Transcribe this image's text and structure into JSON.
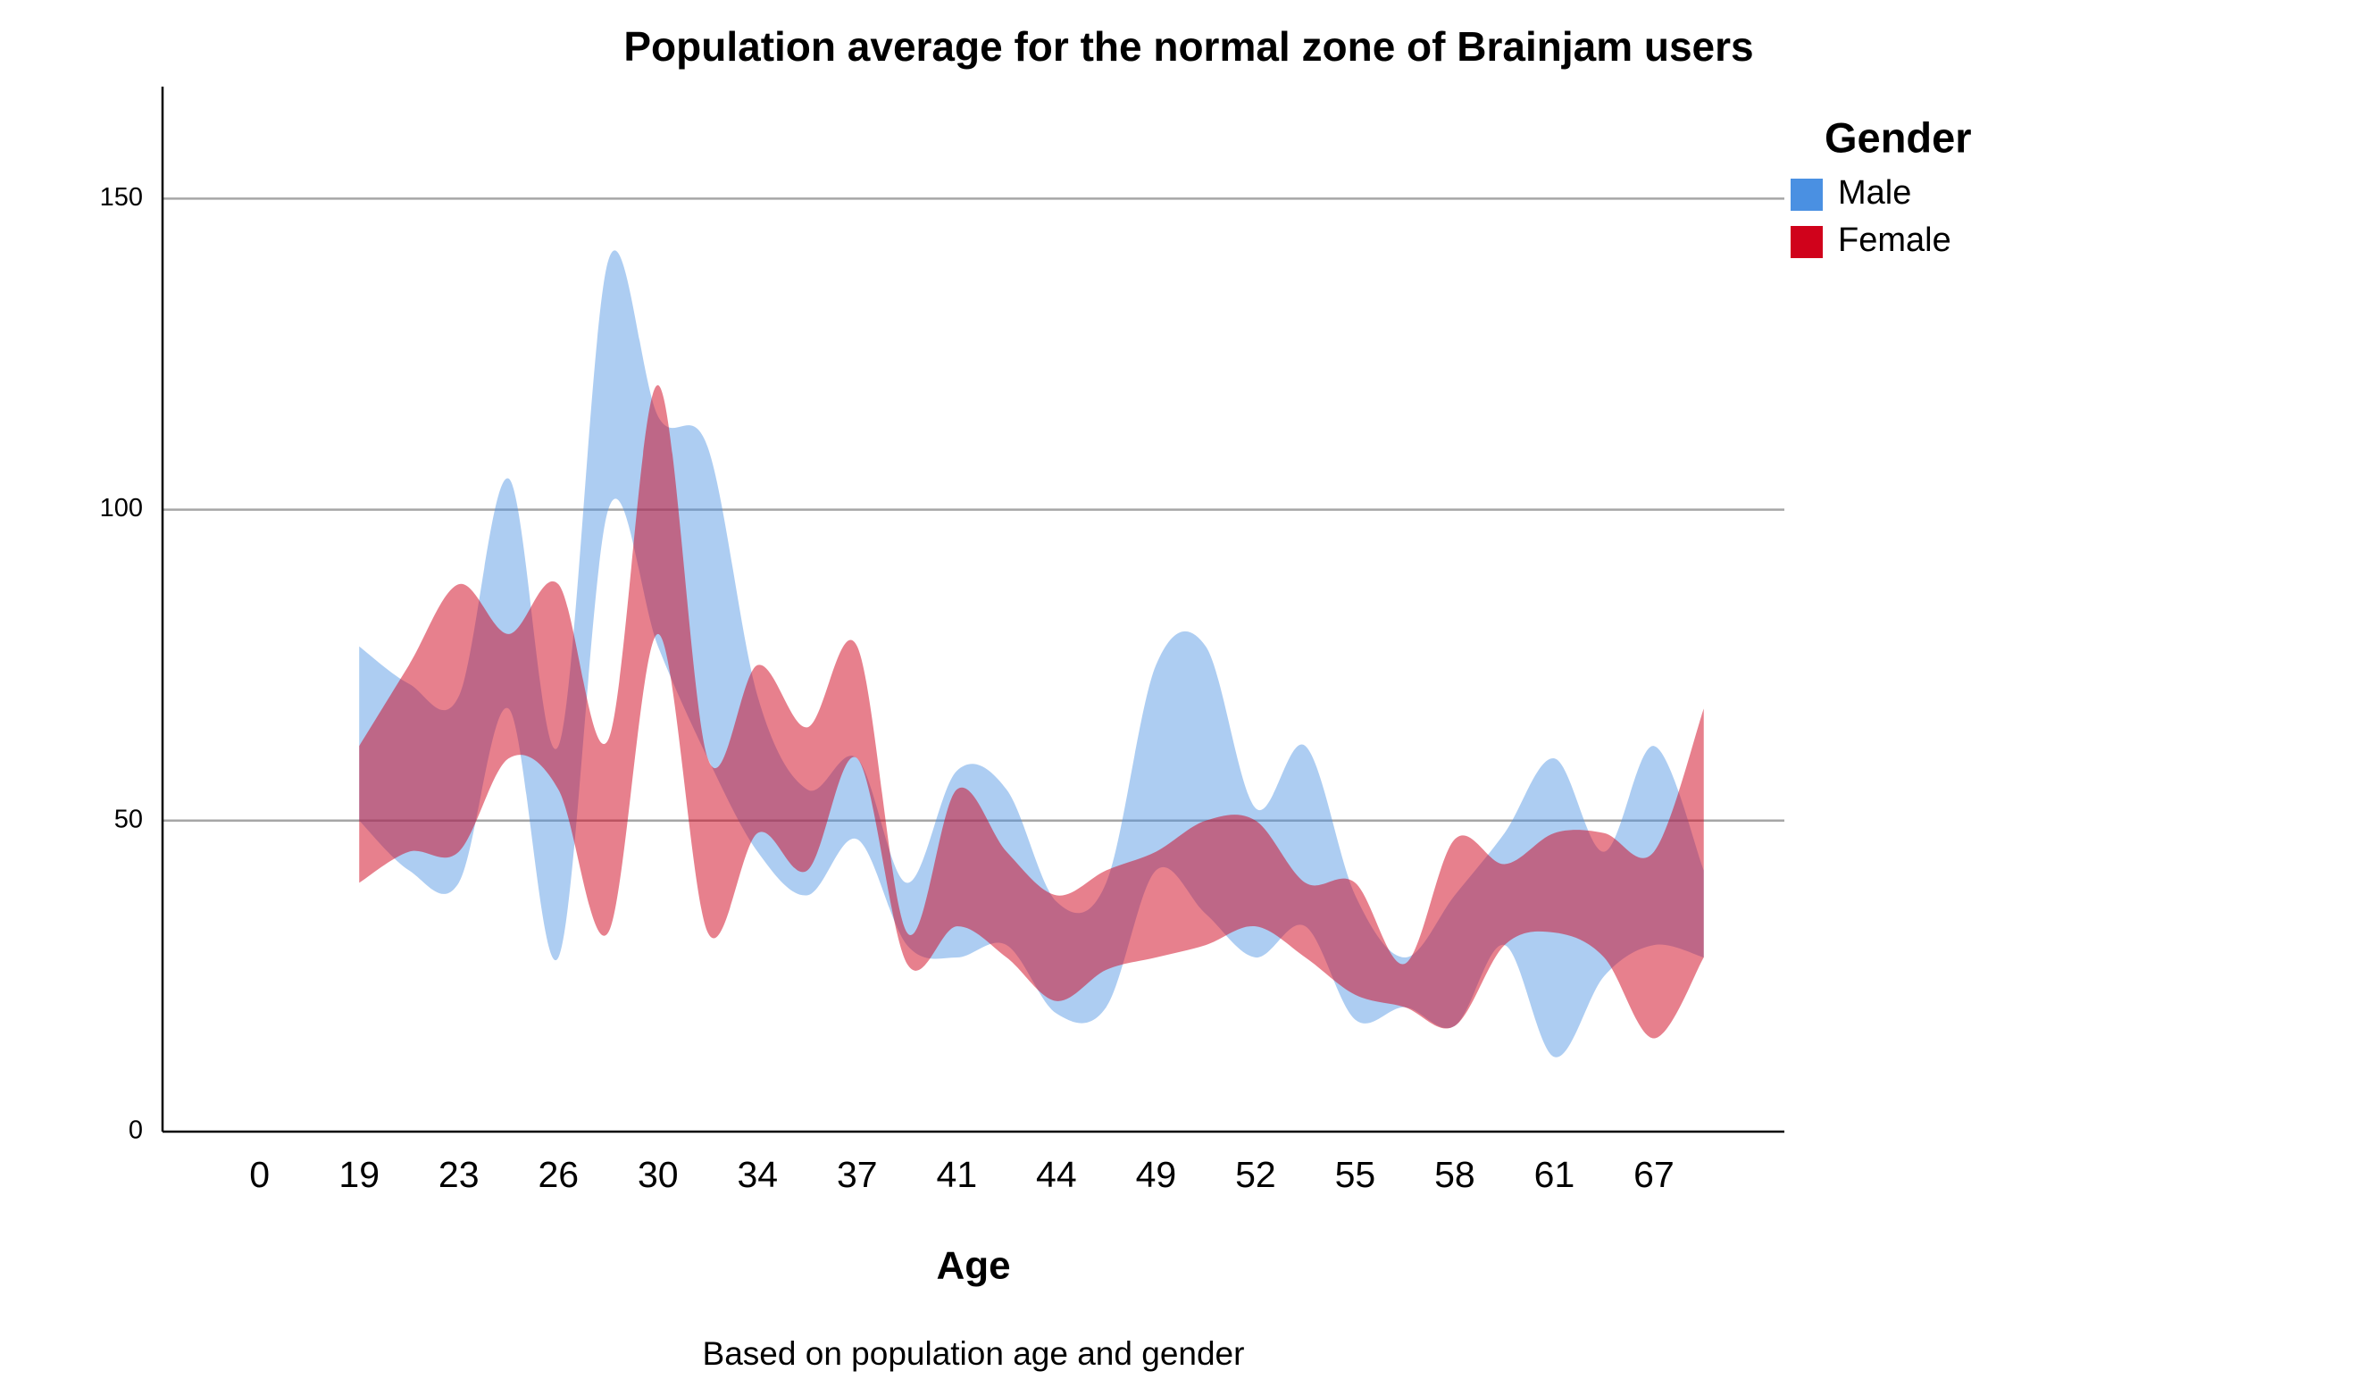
{
  "chart_data": {
    "type": "range-area",
    "title": "Population average for the normal zone of Brainjam users",
    "x_label": "Age",
    "subtitle": "Based on population age and gender",
    "legend_title": "Gender",
    "legend": "top-right",
    "grid": true,
    "categories": [
      "0",
      null,
      "19",
      null,
      "23",
      null,
      "26",
      null,
      "30",
      null,
      "34",
      null,
      "37",
      null,
      "41",
      null,
      "44",
      null,
      "49",
      null,
      "52",
      null,
      "55",
      null,
      "58",
      null,
      "61",
      null,
      "67",
      null
    ],
    "ylim": [
      0,
      168
    ],
    "yticks": [
      0,
      50,
      100,
      150
    ],
    "series": [
      {
        "name": "Male",
        "color": "#4a90e2",
        "low": [
          null,
          null,
          50,
          42,
          40,
          68,
          28,
          100,
          78,
          60,
          45,
          38,
          47,
          30,
          28,
          30,
          19,
          20,
          42,
          35,
          28,
          33,
          18,
          20,
          17,
          30,
          12,
          25,
          30,
          28
        ],
        "high": [
          null,
          null,
          78,
          72,
          70,
          105,
          62,
          140,
          115,
          110,
          70,
          55,
          60,
          40,
          58,
          55,
          37,
          40,
          75,
          78,
          52,
          62,
          38,
          28,
          38,
          48,
          60,
          45,
          62,
          42
        ]
      },
      {
        "name": "Female",
        "color": "#d0021b",
        "low": [
          null,
          null,
          40,
          45,
          45,
          60,
          55,
          32,
          80,
          32,
          48,
          42,
          60,
          27,
          33,
          28,
          21,
          26,
          28,
          30,
          33,
          28,
          22,
          20,
          17,
          30,
          32,
          28,
          15,
          28
        ],
        "high": [
          null,
          null,
          62,
          75,
          88,
          80,
          88,
          63,
          120,
          60,
          75,
          65,
          78,
          32,
          55,
          45,
          38,
          42,
          45,
          50,
          50,
          40,
          40,
          27,
          47,
          43,
          48,
          48,
          45,
          68
        ]
      }
    ]
  }
}
